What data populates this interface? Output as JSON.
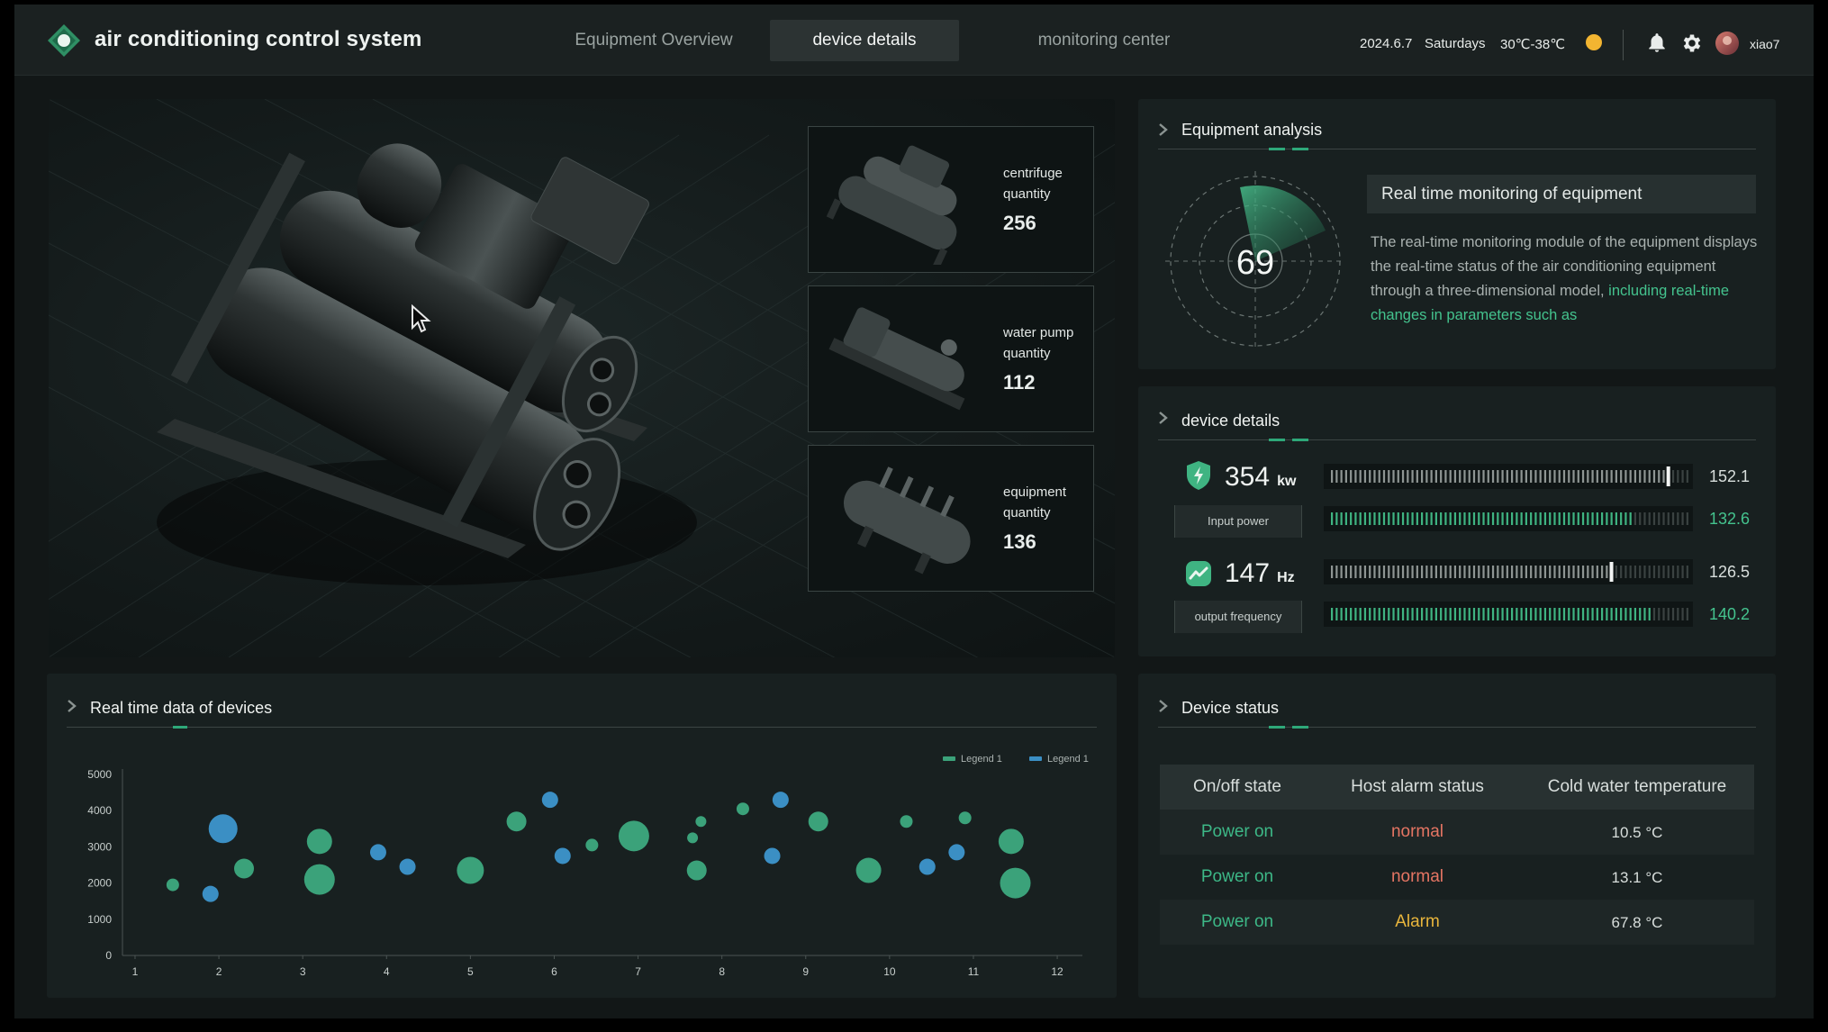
{
  "app": {
    "title": "air conditioning control system"
  },
  "nav": {
    "tabs": [
      {
        "label": "Equipment Overview"
      },
      {
        "label": "device details"
      },
      {
        "label": "monitoring center"
      }
    ]
  },
  "header": {
    "date": "2024.6.7",
    "weekday": "Saturdays",
    "temperature": "30℃-38℃",
    "username": "xiao7"
  },
  "equipment_cards": [
    {
      "name": "centrifuge",
      "sub": "quantity",
      "value": "256"
    },
    {
      "name": "water pump",
      "sub": "quantity",
      "value": "112"
    },
    {
      "name": "equipment",
      "sub": "quantity",
      "value": "136"
    }
  ],
  "analysis": {
    "title": "Equipment analysis",
    "gauge_value": "69",
    "monitor_title": "Real time monitoring of equipment",
    "description": "The real-time monitoring module of the equipment displays the real-time status of the air conditioning equipment through a three-dimensional model,",
    "description_highlight": "including real-time changes in parameters such as"
  },
  "device_details": {
    "title": "device details",
    "metrics": [
      {
        "value": "354",
        "unit": "kw",
        "label": "Input power",
        "bars": [
          {
            "value": "152.1",
            "fill": 0.94,
            "style": "gray"
          },
          {
            "value": "132.6",
            "fill": 0.84,
            "style": "green"
          }
        ]
      },
      {
        "value": "147",
        "unit": "Hz",
        "label": "output frequency",
        "bars": [
          {
            "value": "126.5",
            "fill": 0.78,
            "style": "gray"
          },
          {
            "value": "140.2",
            "fill": 0.9,
            "style": "green"
          }
        ]
      }
    ]
  },
  "realtime": {
    "title": "Real time data of devices"
  },
  "chart_data": {
    "type": "scatter",
    "title": "Real time data of devices",
    "legend": [
      "Legend 1",
      "Legend 1"
    ],
    "legend_position": "top-right",
    "colors": [
      "#3ba27a",
      "#3b8fc4"
    ],
    "ylim": [
      0,
      5000
    ],
    "yticks": [
      0,
      1000,
      2000,
      3000,
      4000,
      5000
    ],
    "xlim": [
      0.85,
      12.3
    ],
    "xticks": [
      1,
      2,
      3,
      4,
      5,
      6,
      7,
      8,
      9,
      10,
      11,
      12
    ],
    "series": [
      {
        "name": "Legend 1",
        "points": [
          {
            "x": 1.45,
            "y": 1950,
            "r": 7
          },
          {
            "x": 2.3,
            "y": 2400,
            "r": 11
          },
          {
            "x": 3.2,
            "y": 2100,
            "r": 17
          },
          {
            "x": 3.2,
            "y": 3150,
            "r": 14
          },
          {
            "x": 5.0,
            "y": 2350,
            "r": 15
          },
          {
            "x": 5.55,
            "y": 3700,
            "r": 11
          },
          {
            "x": 6.45,
            "y": 3050,
            "r": 7
          },
          {
            "x": 6.95,
            "y": 3300,
            "r": 17
          },
          {
            "x": 7.65,
            "y": 3250,
            "r": 6
          },
          {
            "x": 7.75,
            "y": 3700,
            "r": 6
          },
          {
            "x": 7.7,
            "y": 2350,
            "r": 11
          },
          {
            "x": 8.25,
            "y": 4050,
            "r": 7
          },
          {
            "x": 9.15,
            "y": 3700,
            "r": 11
          },
          {
            "x": 9.75,
            "y": 2350,
            "r": 14
          },
          {
            "x": 10.2,
            "y": 3700,
            "r": 7
          },
          {
            "x": 10.9,
            "y": 3800,
            "r": 7
          },
          {
            "x": 11.45,
            "y": 3150,
            "r": 14
          },
          {
            "x": 11.5,
            "y": 2000,
            "r": 17
          }
        ]
      },
      {
        "name": "Legend 1",
        "points": [
          {
            "x": 2.05,
            "y": 3500,
            "r": 16
          },
          {
            "x": 1.9,
            "y": 1700,
            "r": 9
          },
          {
            "x": 3.9,
            "y": 2850,
            "r": 9
          },
          {
            "x": 4.25,
            "y": 2450,
            "r": 9
          },
          {
            "x": 5.95,
            "y": 4300,
            "r": 9
          },
          {
            "x": 6.1,
            "y": 2750,
            "r": 9
          },
          {
            "x": 8.6,
            "y": 2750,
            "r": 9
          },
          {
            "x": 8.7,
            "y": 4300,
            "r": 9
          },
          {
            "x": 10.45,
            "y": 2450,
            "r": 9
          },
          {
            "x": 10.8,
            "y": 2850,
            "r": 9
          }
        ]
      }
    ]
  },
  "device_status": {
    "title": "Device status",
    "columns": [
      "On/off state",
      "Host alarm status",
      "Cold water temperature"
    ],
    "rows": [
      {
        "state": "Power on",
        "alarm": "normal",
        "alarm_level": "normal",
        "temp": "10.5 °C"
      },
      {
        "state": "Power on",
        "alarm": "normal",
        "alarm_level": "normal",
        "temp": "13.1 °C"
      },
      {
        "state": "Power on",
        "alarm": "Alarm",
        "alarm_level": "alarm",
        "temp": "67.8 °C"
      }
    ]
  }
}
